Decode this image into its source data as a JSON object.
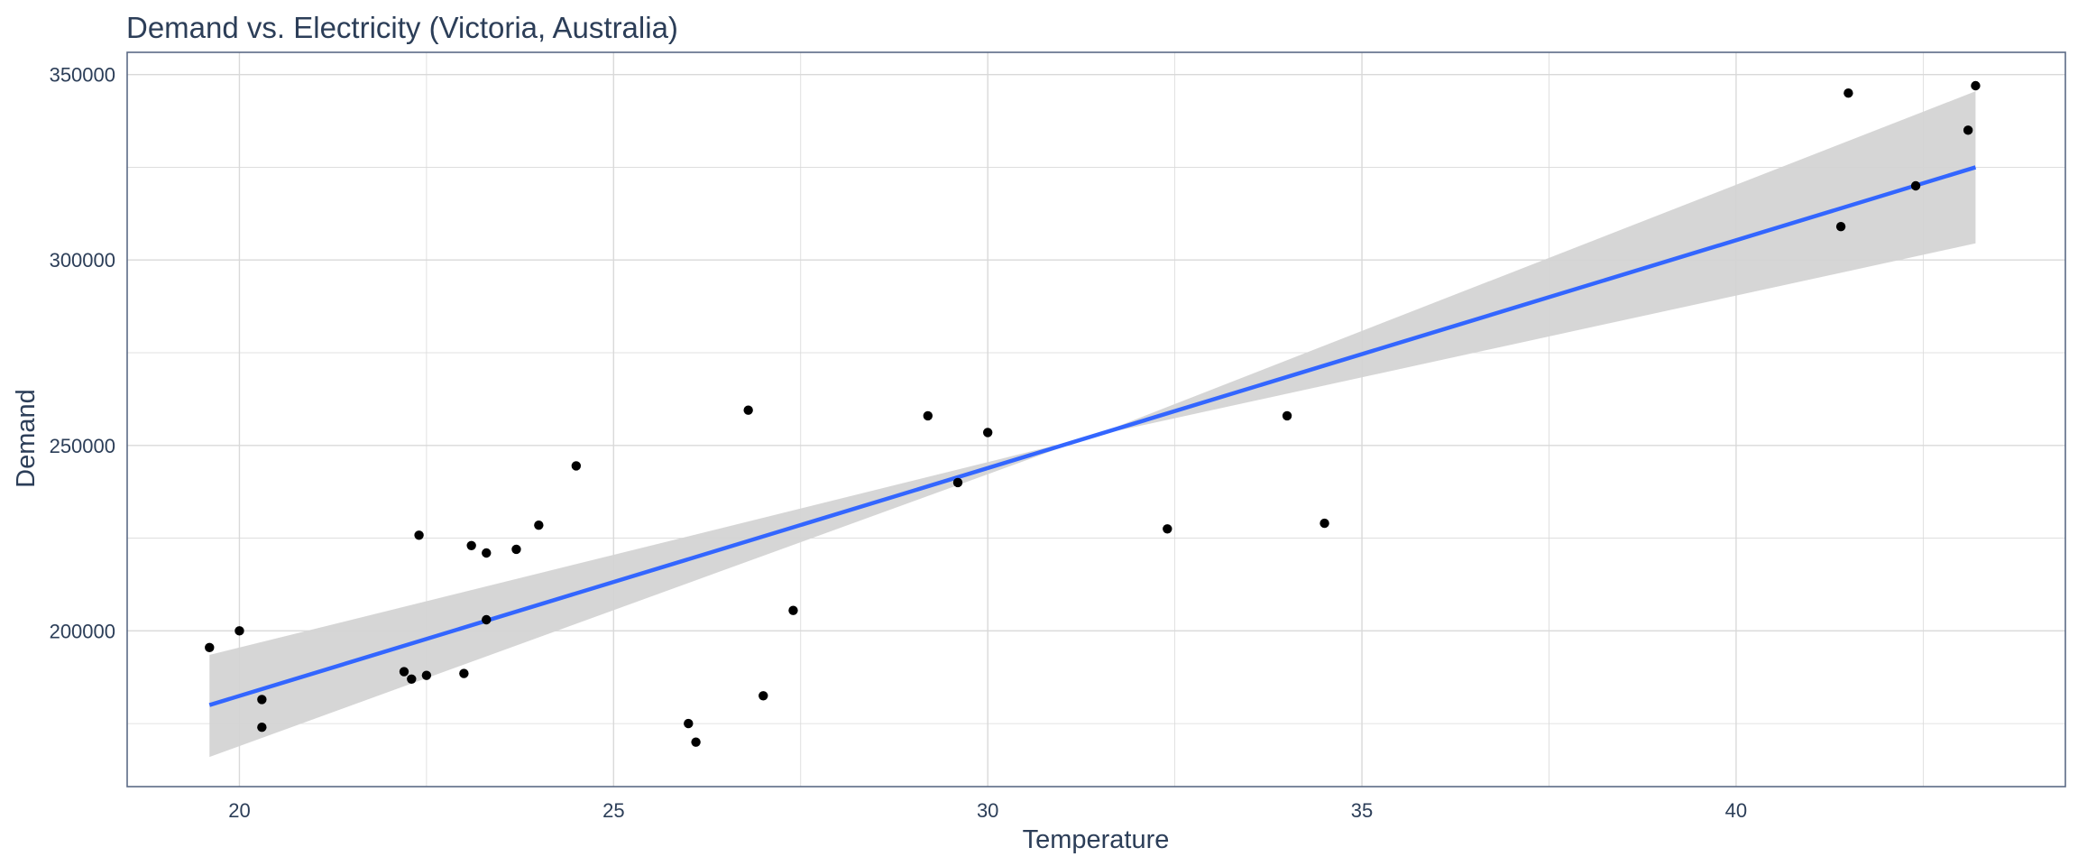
{
  "chart_data": {
    "type": "scatter",
    "title": "Demand vs. Electricity (Victoria, Australia)",
    "xlabel": "Temperature",
    "ylabel": "Demand",
    "xlim": [
      18.5,
      44.4
    ],
    "ylim": [
      158000,
      356000
    ],
    "xticks": [
      20,
      25,
      30,
      35,
      40
    ],
    "yticks": [
      200000,
      250000,
      300000,
      350000
    ],
    "grid": true,
    "points": [
      {
        "x": 19.6,
        "y": 195500
      },
      {
        "x": 20.0,
        "y": 200000
      },
      {
        "x": 20.3,
        "y": 181500
      },
      {
        "x": 20.3,
        "y": 174000
      },
      {
        "x": 22.2,
        "y": 189000
      },
      {
        "x": 22.3,
        "y": 187000
      },
      {
        "x": 22.4,
        "y": 225800
      },
      {
        "x": 22.5,
        "y": 188000
      },
      {
        "x": 23.0,
        "y": 188500
      },
      {
        "x": 23.1,
        "y": 223000
      },
      {
        "x": 23.3,
        "y": 221000
      },
      {
        "x": 23.3,
        "y": 203000
      },
      {
        "x": 23.7,
        "y": 222000
      },
      {
        "x": 24.0,
        "y": 228500
      },
      {
        "x": 24.5,
        "y": 244500
      },
      {
        "x": 26.0,
        "y": 175000
      },
      {
        "x": 26.1,
        "y": 170000
      },
      {
        "x": 26.8,
        "y": 259500
      },
      {
        "x": 27.0,
        "y": 182500
      },
      {
        "x": 27.4,
        "y": 205500
      },
      {
        "x": 29.2,
        "y": 258000
      },
      {
        "x": 29.6,
        "y": 240000
      },
      {
        "x": 30.0,
        "y": 253500
      },
      {
        "x": 32.4,
        "y": 227500
      },
      {
        "x": 34.0,
        "y": 258000
      },
      {
        "x": 34.5,
        "y": 229000
      },
      {
        "x": 41.4,
        "y": 309000
      },
      {
        "x": 41.5,
        "y": 345000
      },
      {
        "x": 42.4,
        "y": 320000
      },
      {
        "x": 43.1,
        "y": 335000
      },
      {
        "x": 43.2,
        "y": 347000
      }
    ],
    "fit": {
      "method": "linear",
      "line": [
        {
          "x": 19.6,
          "y": 180000
        },
        {
          "x": 43.2,
          "y": 325000
        }
      ],
      "ci_upper": [
        {
          "x": 19.6,
          "y": 193500
        },
        {
          "x": 31.4,
          "y": 252500
        },
        {
          "x": 43.2,
          "y": 345500
        }
      ],
      "ci_lower": [
        {
          "x": 19.6,
          "y": 166000
        },
        {
          "x": 31.4,
          "y": 252500
        },
        {
          "x": 43.2,
          "y": 304500
        }
      ]
    },
    "colors": {
      "points": "#000000",
      "fit_line": "#3366ff",
      "ci_band": "#d4d4d4",
      "grid": "#d9d9d9",
      "panel_border": "#5b6a86",
      "text": "#2c3e58"
    }
  }
}
